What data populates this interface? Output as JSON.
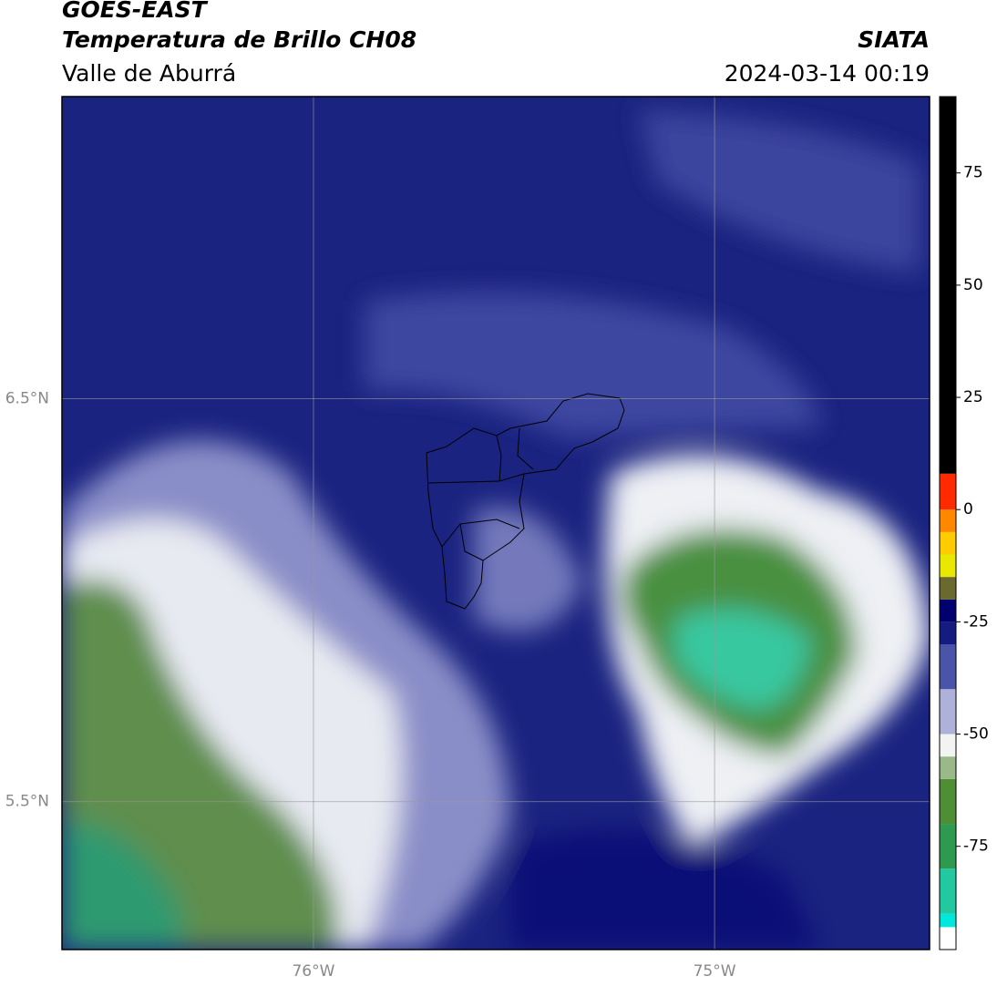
{
  "header": {
    "title": "GOES-EAST",
    "subtitle": "Temperatura de Brillo CH08",
    "region": "Valle de Aburrá",
    "source": "SIATA",
    "datetime": "2024-03-14 00:19"
  },
  "map": {
    "lonlim": [
      -76.627,
      -74.464
    ],
    "latlim": [
      5.133,
      7.25
    ],
    "lonticks": [
      {
        "value": -76,
        "label": "76°W"
      },
      {
        "value": -75,
        "label": "75°W"
      }
    ],
    "latticks": [
      {
        "value": 6.5,
        "label": "6.5°N"
      },
      {
        "value": 5.5,
        "label": "5.5°N"
      }
    ],
    "grid": true
  },
  "colorbar": {
    "bounds": [
      -98,
      -93,
      -90,
      -80,
      -70,
      -60,
      -55,
      -50,
      -40,
      -30,
      -25,
      -20,
      -15,
      -10,
      -5,
      0,
      8,
      92
    ],
    "colors": [
      "#ffffff",
      "#00e8dc",
      "#22c8a0",
      "#2e9a50",
      "#4e8e34",
      "#9ab888",
      "#f2f4f2",
      "#aeb2da",
      "#4a54a8",
      "#141c82",
      "#00006e",
      "#6a6a30",
      "#e8e800",
      "#ffcc00",
      "#ff8800",
      "#ff2a00",
      "#000000"
    ],
    "ticks": [
      -75,
      -50,
      -25,
      0,
      25,
      50,
      75
    ]
  }
}
